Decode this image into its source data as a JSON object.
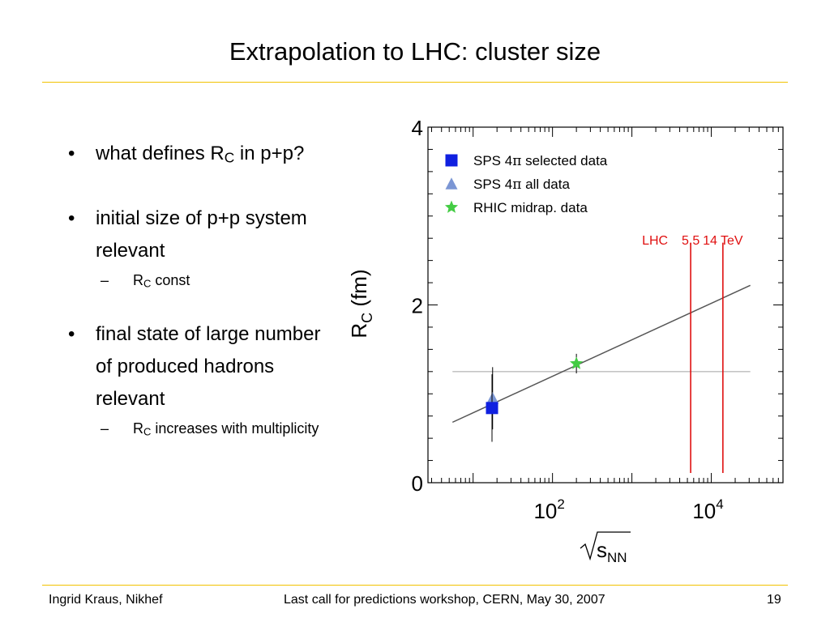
{
  "slide": {
    "title": "Extrapolation to LHC: cluster size",
    "bullets": {
      "b1_pre": "what defines R",
      "b1_sub": "C",
      "b1_post": "in p+p?",
      "b2": "initial size of p+p system relevant",
      "b2_sub1_pre": "R",
      "b2_sub1_sub": "C",
      "b2_sub1_post": "const",
      "b3": "final state of large number of produced hadrons relevant",
      "b3_sub1_pre": "R",
      "b3_sub1_sub": "C",
      "b3_sub1_post": "increases with multiplicity"
    },
    "footer": {
      "left": "Ingrid Kraus, Nikhef",
      "center": "Last call for predictions workshop, CERN, May 30, 2007",
      "right": "19"
    },
    "colors": {
      "accent_rule": "#f2c200",
      "lhc_red": "#e01010"
    }
  },
  "chart_data": {
    "type": "scatter",
    "xscale": "log",
    "xlim": [
      2.7,
      80000
    ],
    "ylim": [
      0,
      4
    ],
    "xticks": [
      {
        "base": "10",
        "exp": "2",
        "value": 100
      },
      {
        "base": "10",
        "exp": "4",
        "value": 10000
      }
    ],
    "yticks": [
      "0",
      "2",
      "4"
    ],
    "xlabel": {
      "root": "s",
      "sub": "NN"
    },
    "ylabel": {
      "main": "R",
      "sub": "C",
      "unit": "(fm)"
    },
    "legend": {
      "position": "top-left",
      "entries": [
        {
          "marker": "square",
          "color": "#1020e0",
          "pre": "SPS 4",
          "sym": "π",
          "post": " selected data"
        },
        {
          "marker": "triangle",
          "color": "#7b96d4",
          "pre": "SPS 4",
          "sym": "π",
          "post": " all data"
        },
        {
          "marker": "star",
          "color": "#44cc44",
          "pre": "RHIC midrap. data",
          "sym": "",
          "post": ""
        }
      ]
    },
    "series": [
      {
        "name": "SPS 4π selected data",
        "marker": "square",
        "color": "#1020e0",
        "points": [
          {
            "x": 17.3,
            "y": 0.84,
            "yerr": 0.38
          }
        ]
      },
      {
        "name": "SPS 4π all data",
        "marker": "triangle",
        "color": "#7b96d4",
        "points": [
          {
            "x": 17.6,
            "y": 0.95,
            "yerr": 0.35
          }
        ]
      },
      {
        "name": "RHIC midrap. data",
        "marker": "star",
        "color": "#44cc44",
        "points": [
          {
            "x": 200,
            "y": 1.34,
            "yerr": 0.11
          }
        ]
      }
    ],
    "fit_line": {
      "color": "#555555",
      "x": [
        5.5,
        31000
      ],
      "y": [
        0.68,
        2.22
      ]
    },
    "const_line": {
      "color": "#bbbbbb",
      "x": [
        5.5,
        31000
      ],
      "y": [
        1.25,
        1.25
      ]
    },
    "vlines": [
      {
        "x": 5500,
        "label": "5.5",
        "color": "#e01010"
      },
      {
        "x": 14000,
        "label": "14 TeV",
        "color": "#e01010"
      }
    ],
    "vline_group_label": "LHC",
    "vline_ymax": 2.7
  }
}
